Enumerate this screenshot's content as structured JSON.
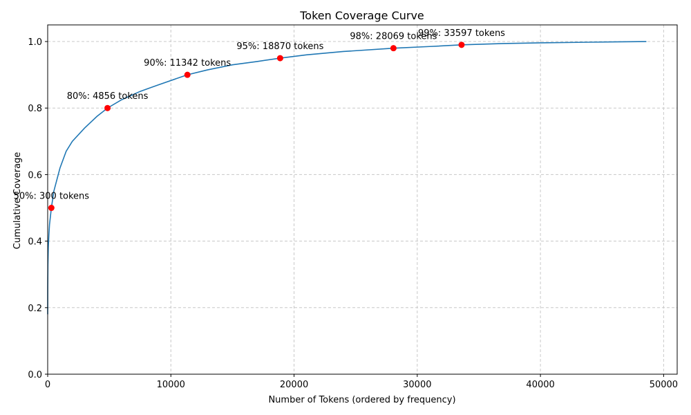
{
  "colors": {
    "line": "#1f77b4",
    "marker": "#ff0000",
    "grid": "#c8c8c8",
    "axis": "#000000"
  },
  "chart_data": {
    "type": "line",
    "title": "Token Coverage Curve",
    "xlabel": "Number of Tokens (ordered by frequency)",
    "ylabel": "Cumulative Coverage",
    "xlim": [
      0,
      51100
    ],
    "ylim": [
      0,
      1.05
    ],
    "xticks": [
      0,
      10000,
      20000,
      30000,
      40000,
      50000
    ],
    "yticks": [
      0.0,
      0.2,
      0.4,
      0.6,
      0.8,
      1.0
    ],
    "xtick_labels": [
      "0",
      "10000",
      "20000",
      "30000",
      "40000",
      "50000"
    ],
    "ytick_labels": [
      "0.0",
      "0.2",
      "0.4",
      "0.6",
      "0.8",
      "1.0"
    ],
    "grid": true,
    "grid_style": "dashed",
    "series": [
      {
        "points": [
          [
            1,
            0.18
          ],
          [
            5,
            0.26
          ],
          [
            20,
            0.33
          ],
          [
            50,
            0.38
          ],
          [
            100,
            0.42
          ],
          [
            150,
            0.45
          ],
          [
            300,
            0.5
          ],
          [
            500,
            0.55
          ],
          [
            1000,
            0.62
          ],
          [
            1500,
            0.67
          ],
          [
            2000,
            0.7
          ],
          [
            3000,
            0.74
          ],
          [
            4000,
            0.775
          ],
          [
            4856,
            0.8
          ],
          [
            6000,
            0.825
          ],
          [
            7500,
            0.85
          ],
          [
            9000,
            0.87
          ],
          [
            11342,
            0.9
          ],
          [
            13000,
            0.915
          ],
          [
            15000,
            0.93
          ],
          [
            17000,
            0.94
          ],
          [
            18870,
            0.95
          ],
          [
            21000,
            0.96
          ],
          [
            24000,
            0.97
          ],
          [
            28069,
            0.98
          ],
          [
            31000,
            0.985
          ],
          [
            33597,
            0.99
          ],
          [
            37000,
            0.994
          ],
          [
            40000,
            0.996
          ],
          [
            44000,
            0.998
          ],
          [
            48600,
            1.0
          ]
        ]
      }
    ],
    "markers": [
      {
        "x": 300,
        "y": 0.5,
        "label": "50%: 300 tokens"
      },
      {
        "x": 4856,
        "y": 0.8,
        "label": "80%: 4856 tokens"
      },
      {
        "x": 11342,
        "y": 0.9,
        "label": "90%: 11342 tokens"
      },
      {
        "x": 18870,
        "y": 0.95,
        "label": "95%: 18870 tokens"
      },
      {
        "x": 28069,
        "y": 0.98,
        "label": "98%: 28069 tokens"
      },
      {
        "x": 33597,
        "y": 0.99,
        "label": "99%: 33597 tokens"
      }
    ]
  }
}
